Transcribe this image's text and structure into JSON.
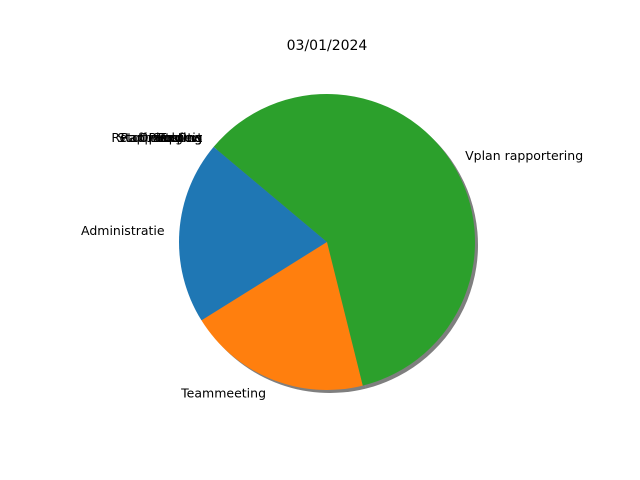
{
  "chart_data": {
    "type": "pie",
    "title": "03/01/2024",
    "labels": [
      "Administratie",
      "Teammeeting",
      "Vplan rapportering",
      "Retourzending",
      "Otis",
      "Staff meeting",
      "Rapportering",
      "Planning",
      "Opvolging",
      "Support",
      "Review",
      "Testing"
    ],
    "values": [
      20,
      20,
      60,
      0,
      0,
      0,
      0,
      0,
      0,
      0,
      0,
      0
    ],
    "colors": [
      "#1f77b4",
      "#ff7f0e",
      "#2ca02c",
      "#d62728",
      "#9467bd",
      "#8c564b",
      "#e377c2",
      "#7f7f7f",
      "#bcbd22",
      "#17becf",
      "#1f77b4",
      "#ff7f0e"
    ],
    "start_angle_deg": 140,
    "shadow": true
  }
}
